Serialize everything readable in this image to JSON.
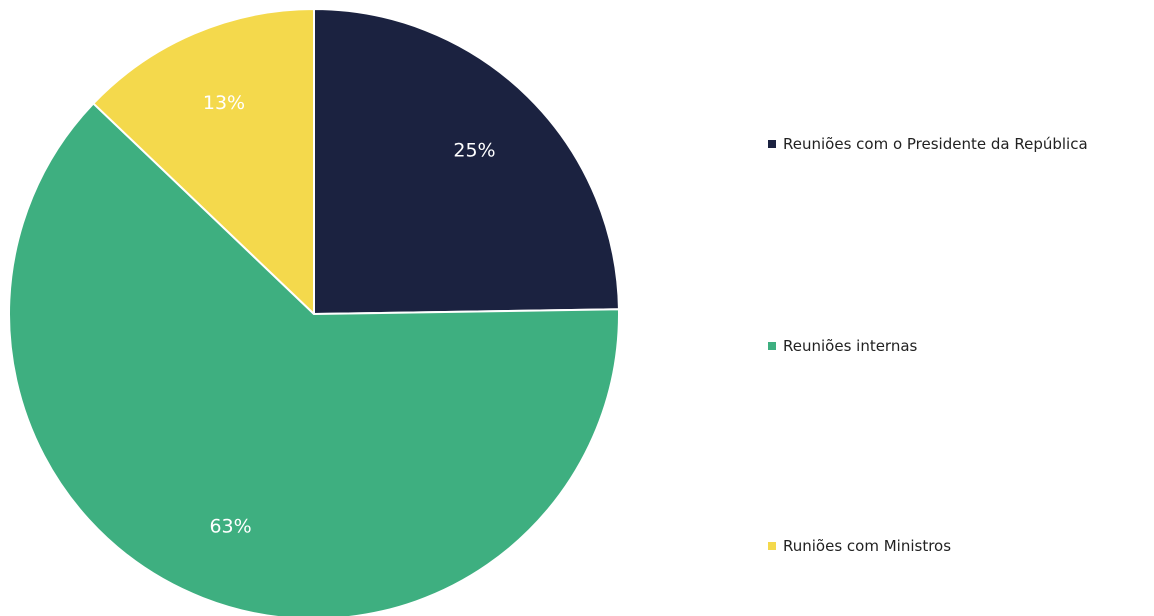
{
  "chart_data": {
    "type": "pie",
    "title": "",
    "slices": [
      {
        "label": "Reuniões com o Presidente da República",
        "value": 25,
        "display": "25%",
        "color": "#1b2240"
      },
      {
        "label": "Reuniões internas",
        "value": 63,
        "display": "63%",
        "color": "#3eaf80"
      },
      {
        "label": "Runiões com Ministros",
        "value": 13,
        "display": "13%",
        "color": "#f4d94c"
      }
    ],
    "legend_position": "right",
    "start_angle": "top",
    "direction": "clockwise"
  }
}
